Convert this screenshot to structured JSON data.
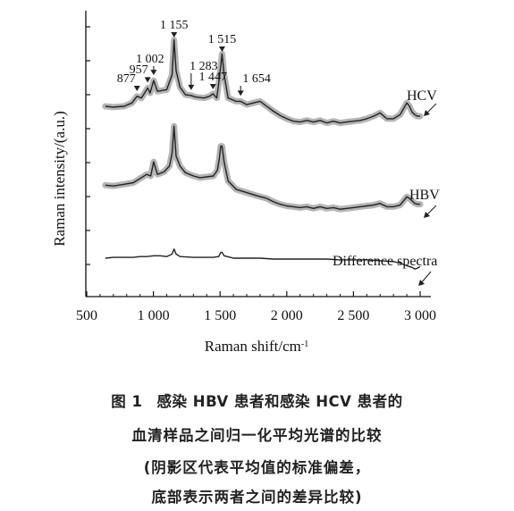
{
  "chart_data": {
    "type": "line",
    "xlabel": "Raman shift/cm",
    "xlabel_superscript": "-1",
    "ylabel": "Raman intensity/(a.u.)",
    "xlim": [
      500,
      3100
    ],
    "x_ticks": [
      500,
      1000,
      1500,
      2000,
      2500,
      3000
    ],
    "x_tick_labels": [
      "500",
      "1 000",
      "1 500",
      "2 000",
      "2 500",
      "3 000"
    ],
    "grid": false,
    "series": [
      {
        "name": "HCV",
        "band": true,
        "points": [
          [
            640,
            128
          ],
          [
            700,
            129
          ],
          [
            780,
            128
          ],
          [
            840,
            124
          ],
          [
            877,
            116
          ],
          [
            910,
            118
          ],
          [
            957,
            106
          ],
          [
            975,
            112
          ],
          [
            1002,
            97
          ],
          [
            1030,
            110
          ],
          [
            1100,
            108
          ],
          [
            1140,
            90
          ],
          [
            1155,
            48
          ],
          [
            1170,
            85
          ],
          [
            1200,
            105
          ],
          [
            1240,
            114
          ],
          [
            1283,
            115
          ],
          [
            1320,
            117
          ],
          [
            1380,
            118
          ],
          [
            1420,
            116
          ],
          [
            1447,
            113
          ],
          [
            1475,
            118
          ],
          [
            1490,
            100
          ],
          [
            1505,
            80
          ],
          [
            1515,
            65
          ],
          [
            1530,
            90
          ],
          [
            1560,
            118
          ],
          [
            1620,
            122
          ],
          [
            1654,
            122
          ],
          [
            1700,
            126
          ],
          [
            1750,
            124
          ],
          [
            1800,
            122
          ],
          [
            1850,
            128
          ],
          [
            1900,
            134
          ],
          [
            1950,
            139
          ],
          [
            2000,
            143
          ],
          [
            2050,
            146
          ],
          [
            2100,
            147
          ],
          [
            2150,
            145
          ],
          [
            2200,
            147
          ],
          [
            2250,
            145
          ],
          [
            2300,
            148
          ],
          [
            2350,
            146
          ],
          [
            2400,
            148
          ],
          [
            2450,
            147
          ],
          [
            2500,
            146
          ],
          [
            2550,
            145
          ],
          [
            2600,
            143
          ],
          [
            2650,
            140
          ],
          [
            2700,
            136
          ],
          [
            2750,
            143
          ],
          [
            2800,
            143
          ],
          [
            2850,
            138
          ],
          [
            2900,
            124
          ],
          [
            2920,
            128
          ],
          [
            2940,
            135
          ],
          [
            2960,
            138
          ],
          [
            2980,
            140
          ],
          [
            3000,
            140
          ]
        ]
      },
      {
        "name": "HBV",
        "band": true,
        "points": [
          [
            640,
            223
          ],
          [
            700,
            224
          ],
          [
            780,
            222
          ],
          [
            850,
            220
          ],
          [
            900,
            215
          ],
          [
            950,
            210
          ],
          [
            980,
            212
          ],
          [
            1002,
            195
          ],
          [
            1030,
            210
          ],
          [
            1080,
            207
          ],
          [
            1120,
            200
          ],
          [
            1140,
            185
          ],
          [
            1155,
            152
          ],
          [
            1170,
            188
          ],
          [
            1200,
            200
          ],
          [
            1240,
            208
          ],
          [
            1300,
            212
          ],
          [
            1350,
            214
          ],
          [
            1400,
            213
          ],
          [
            1450,
            212
          ],
          [
            1480,
            205
          ],
          [
            1495,
            190
          ],
          [
            1505,
            176
          ],
          [
            1515,
            176
          ],
          [
            1530,
            195
          ],
          [
            1560,
            218
          ],
          [
            1620,
            228
          ],
          [
            1700,
            232
          ],
          [
            1780,
            236
          ],
          [
            1850,
            239
          ],
          [
            1900,
            243
          ],
          [
            1950,
            246
          ],
          [
            2000,
            248
          ],
          [
            2050,
            249
          ],
          [
            2100,
            250
          ],
          [
            2150,
            249
          ],
          [
            2200,
            251
          ],
          [
            2250,
            249
          ],
          [
            2300,
            251
          ],
          [
            2350,
            250
          ],
          [
            2400,
            252
          ],
          [
            2450,
            251
          ],
          [
            2500,
            250
          ],
          [
            2550,
            249
          ],
          [
            2600,
            248
          ],
          [
            2650,
            247
          ],
          [
            2700,
            245
          ],
          [
            2750,
            249
          ],
          [
            2800,
            249
          ],
          [
            2850,
            247
          ],
          [
            2900,
            237
          ],
          [
            2920,
            239
          ],
          [
            2940,
            242
          ],
          [
            2960,
            245
          ],
          [
            2980,
            246
          ],
          [
            3000,
            246
          ]
        ]
      },
      {
        "name": "Difference spectra",
        "band": false,
        "points": [
          [
            640,
            311
          ],
          [
            700,
            310
          ],
          [
            780,
            310
          ],
          [
            850,
            310
          ],
          [
            900,
            309
          ],
          [
            950,
            309
          ],
          [
            1002,
            308
          ],
          [
            1050,
            308
          ],
          [
            1100,
            309
          ],
          [
            1140,
            306
          ],
          [
            1155,
            300
          ],
          [
            1170,
            306
          ],
          [
            1200,
            309
          ],
          [
            1300,
            310
          ],
          [
            1400,
            310
          ],
          [
            1450,
            310
          ],
          [
            1490,
            309
          ],
          [
            1505,
            304
          ],
          [
            1515,
            304
          ],
          [
            1530,
            308
          ],
          [
            1600,
            311
          ],
          [
            1700,
            311
          ],
          [
            1800,
            311
          ],
          [
            1900,
            312
          ],
          [
            2000,
            312
          ],
          [
            2100,
            312
          ],
          [
            2200,
            312
          ],
          [
            2300,
            312
          ],
          [
            2400,
            313
          ],
          [
            2500,
            313
          ],
          [
            2600,
            313
          ],
          [
            2700,
            314
          ],
          [
            2800,
            315
          ],
          [
            2850,
            317
          ],
          [
            2900,
            320
          ],
          [
            2940,
            322
          ],
          [
            2960,
            324
          ],
          [
            2980,
            323
          ],
          [
            3000,
            321
          ]
        ]
      }
    ],
    "series_labels": [
      "HCV",
      "HBV",
      "Difference spectra"
    ],
    "peak_annotations": [
      {
        "label": "877",
        "x": 877
      },
      {
        "label": "957",
        "x": 957
      },
      {
        "label": "1 002",
        "x": 1002
      },
      {
        "label": "1 155",
        "x": 1155
      },
      {
        "label": "1 283",
        "x": 1283
      },
      {
        "label": "1 447",
        "x": 1447
      },
      {
        "label": "1 515",
        "x": 1515
      },
      {
        "label": "1 654",
        "x": 1654
      }
    ]
  },
  "caption": {
    "number": "图 1",
    "line1": "感染 HBV 患者和感染 HCV 患者的",
    "line2": "血清样品之间归一化平均光谱的比较",
    "line3": "(阴影区代表平均值的标准偏差，",
    "line4": "底部表示两者之间的差异比较)"
  },
  "colors": {
    "line": "#222222",
    "band": "#b5b5b5",
    "axis": "#111111",
    "text": "#111111"
  }
}
